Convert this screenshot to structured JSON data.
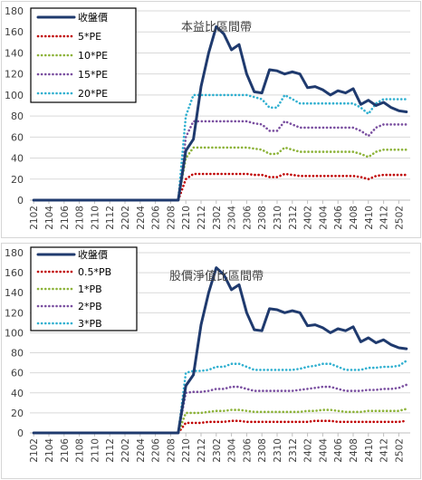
{
  "chart_data": [
    {
      "type": "line",
      "title": "本益比區間帶",
      "x": [
        "2102",
        "2103",
        "2104",
        "2105",
        "2106",
        "2107",
        "2108",
        "2109",
        "2110",
        "2111",
        "2112",
        "2201",
        "2202",
        "2203",
        "2204",
        "2205",
        "2206",
        "2207",
        "2208",
        "2209",
        "2210",
        "2211",
        "2212",
        "2301",
        "2302",
        "2303",
        "2304",
        "2305",
        "2306",
        "2307",
        "2308",
        "2309",
        "2310",
        "2311",
        "2312",
        "2401",
        "2402",
        "2403",
        "2404",
        "2405",
        "2406",
        "2407",
        "2408",
        "2409",
        "2410",
        "2411",
        "2412",
        "2501",
        "2502",
        "2503"
      ],
      "xticks": [
        "2102",
        "2104",
        "2106",
        "2108",
        "2110",
        "2112",
        "2202",
        "2204",
        "2206",
        "2208",
        "2210",
        "2212",
        "2302",
        "2304",
        "2306",
        "2308",
        "2310",
        "2312",
        "2402",
        "2404",
        "2406",
        "2408",
        "2410",
        "2412",
        "2502"
      ],
      "ylim": [
        0,
        180
      ],
      "yticks": [
        0,
        20,
        40,
        60,
        80,
        100,
        120,
        140,
        160,
        180
      ],
      "grid": "horizontal",
      "legend": "top-left",
      "series": [
        {
          "name": "收盤價",
          "color": "#1f3a6e",
          "style": "solid",
          "values": [
            0,
            0,
            0,
            0,
            0,
            0,
            0,
            0,
            0,
            0,
            0,
            0,
            0,
            0,
            0,
            0,
            0,
            0,
            0,
            0,
            47,
            58,
            108,
            140,
            165,
            158,
            143,
            148,
            120,
            103,
            102,
            124,
            123,
            120,
            122,
            120,
            107,
            108,
            105,
            100,
            104,
            102,
            106,
            91,
            95,
            90,
            93,
            88,
            85,
            84
          ]
        },
        {
          "name": "5*PE",
          "color": "#c00000",
          "style": "dotted",
          "values": [
            0,
            0,
            0,
            0,
            0,
            0,
            0,
            0,
            0,
            0,
            0,
            0,
            0,
            0,
            0,
            0,
            0,
            0,
            0,
            0,
            20,
            25,
            25,
            25,
            25,
            25,
            25,
            25,
            25,
            24,
            24,
            22,
            22,
            25,
            24,
            23,
            23,
            23,
            23,
            23,
            23,
            23,
            23,
            22,
            20,
            23,
            24,
            24,
            24,
            24
          ]
        },
        {
          "name": "10*PE",
          "color": "#8db33a",
          "style": "dotted",
          "values": [
            0,
            0,
            0,
            0,
            0,
            0,
            0,
            0,
            0,
            0,
            0,
            0,
            0,
            0,
            0,
            0,
            0,
            0,
            0,
            0,
            40,
            50,
            50,
            50,
            50,
            50,
            50,
            50,
            50,
            49,
            48,
            44,
            44,
            50,
            48,
            46,
            46,
            46,
            46,
            46,
            46,
            46,
            46,
            44,
            41,
            46,
            48,
            48,
            48,
            48
          ]
        },
        {
          "name": "15*PE",
          "color": "#7a4fa0",
          "style": "dotted",
          "values": [
            0,
            0,
            0,
            0,
            0,
            0,
            0,
            0,
            0,
            0,
            0,
            0,
            0,
            0,
            0,
            0,
            0,
            0,
            0,
            0,
            60,
            75,
            75,
            75,
            75,
            75,
            75,
            75,
            75,
            73,
            72,
            66,
            66,
            75,
            72,
            69,
            69,
            69,
            69,
            69,
            69,
            69,
            69,
            66,
            61,
            69,
            72,
            72,
            72,
            72
          ]
        },
        {
          "name": "20*PE",
          "color": "#31b0d0",
          "style": "dotted",
          "values": [
            0,
            0,
            0,
            0,
            0,
            0,
            0,
            0,
            0,
            0,
            0,
            0,
            0,
            0,
            0,
            0,
            0,
            0,
            0,
            0,
            80,
            100,
            100,
            100,
            100,
            100,
            100,
            100,
            100,
            98,
            96,
            88,
            88,
            100,
            96,
            92,
            92,
            92,
            92,
            92,
            92,
            92,
            92,
            88,
            82,
            92,
            96,
            96,
            96,
            96
          ]
        }
      ]
    },
    {
      "type": "line",
      "title": "股價淨值比區間帶",
      "x": [
        "2102",
        "2103",
        "2104",
        "2105",
        "2106",
        "2107",
        "2108",
        "2109",
        "2110",
        "2111",
        "2112",
        "2201",
        "2202",
        "2203",
        "2204",
        "2205",
        "2206",
        "2207",
        "2208",
        "2209",
        "2210",
        "2211",
        "2212",
        "2301",
        "2302",
        "2303",
        "2304",
        "2305",
        "2306",
        "2307",
        "2308",
        "2309",
        "2310",
        "2311",
        "2312",
        "2401",
        "2402",
        "2403",
        "2404",
        "2405",
        "2406",
        "2407",
        "2408",
        "2409",
        "2410",
        "2411",
        "2412",
        "2501",
        "2502",
        "2503"
      ],
      "xticks": [
        "2102",
        "2104",
        "2106",
        "2108",
        "2110",
        "2112",
        "2202",
        "2204",
        "2206",
        "2208",
        "2210",
        "2212",
        "2302",
        "2304",
        "2306",
        "2308",
        "2310",
        "2312",
        "2402",
        "2404",
        "2406",
        "2408",
        "2410",
        "2412",
        "2502"
      ],
      "ylim": [
        0,
        180
      ],
      "yticks": [
        0,
        20,
        40,
        60,
        80,
        100,
        120,
        140,
        160,
        180
      ],
      "grid": "horizontal",
      "legend": "top-left",
      "series": [
        {
          "name": "收盤價",
          "color": "#1f3a6e",
          "style": "solid",
          "values": [
            0,
            0,
            0,
            0,
            0,
            0,
            0,
            0,
            0,
            0,
            0,
            0,
            0,
            0,
            0,
            0,
            0,
            0,
            0,
            0,
            47,
            58,
            108,
            140,
            165,
            158,
            143,
            148,
            120,
            103,
            102,
            124,
            123,
            120,
            122,
            120,
            107,
            108,
            105,
            100,
            104,
            102,
            106,
            91,
            95,
            90,
            93,
            88,
            85,
            84
          ]
        },
        {
          "name": "0.5*PB",
          "color": "#c00000",
          "style": "dotted",
          "values": [
            0,
            0,
            0,
            0,
            0,
            0,
            0,
            0,
            0,
            0,
            0,
            0,
            0,
            0,
            0,
            0,
            0,
            0,
            0,
            0,
            10,
            10,
            10,
            11,
            11,
            11,
            12,
            12,
            11,
            11,
            11,
            11,
            11,
            11,
            11,
            11,
            11,
            12,
            12,
            12,
            11,
            11,
            11,
            11,
            11,
            11,
            11,
            11,
            11,
            12
          ]
        },
        {
          "name": "1*PB",
          "color": "#8db33a",
          "style": "dotted",
          "values": [
            0,
            0,
            0,
            0,
            0,
            0,
            0,
            0,
            0,
            0,
            0,
            0,
            0,
            0,
            0,
            0,
            0,
            0,
            0,
            0,
            20,
            20,
            20,
            21,
            22,
            22,
            23,
            23,
            22,
            21,
            21,
            21,
            21,
            21,
            21,
            21,
            22,
            22,
            23,
            23,
            22,
            21,
            21,
            21,
            22,
            22,
            22,
            22,
            22,
            24
          ]
        },
        {
          "name": "2*PB",
          "color": "#7a4fa0",
          "style": "dotted",
          "values": [
            0,
            0,
            0,
            0,
            0,
            0,
            0,
            0,
            0,
            0,
            0,
            0,
            0,
            0,
            0,
            0,
            0,
            0,
            0,
            0,
            40,
            41,
            41,
            42,
            44,
            44,
            46,
            46,
            44,
            42,
            42,
            42,
            42,
            42,
            42,
            43,
            44,
            45,
            46,
            46,
            44,
            42,
            42,
            42,
            43,
            43,
            44,
            44,
            45,
            48
          ]
        },
        {
          "name": "3*PB",
          "color": "#31b0d0",
          "style": "dotted",
          "values": [
            0,
            0,
            0,
            0,
            0,
            0,
            0,
            0,
            0,
            0,
            0,
            0,
            0,
            0,
            0,
            0,
            0,
            0,
            0,
            0,
            60,
            62,
            62,
            63,
            66,
            66,
            69,
            69,
            66,
            63,
            63,
            63,
            63,
            63,
            63,
            64,
            66,
            67,
            69,
            69,
            66,
            63,
            63,
            63,
            65,
            65,
            66,
            66,
            67,
            72
          ]
        }
      ]
    }
  ]
}
